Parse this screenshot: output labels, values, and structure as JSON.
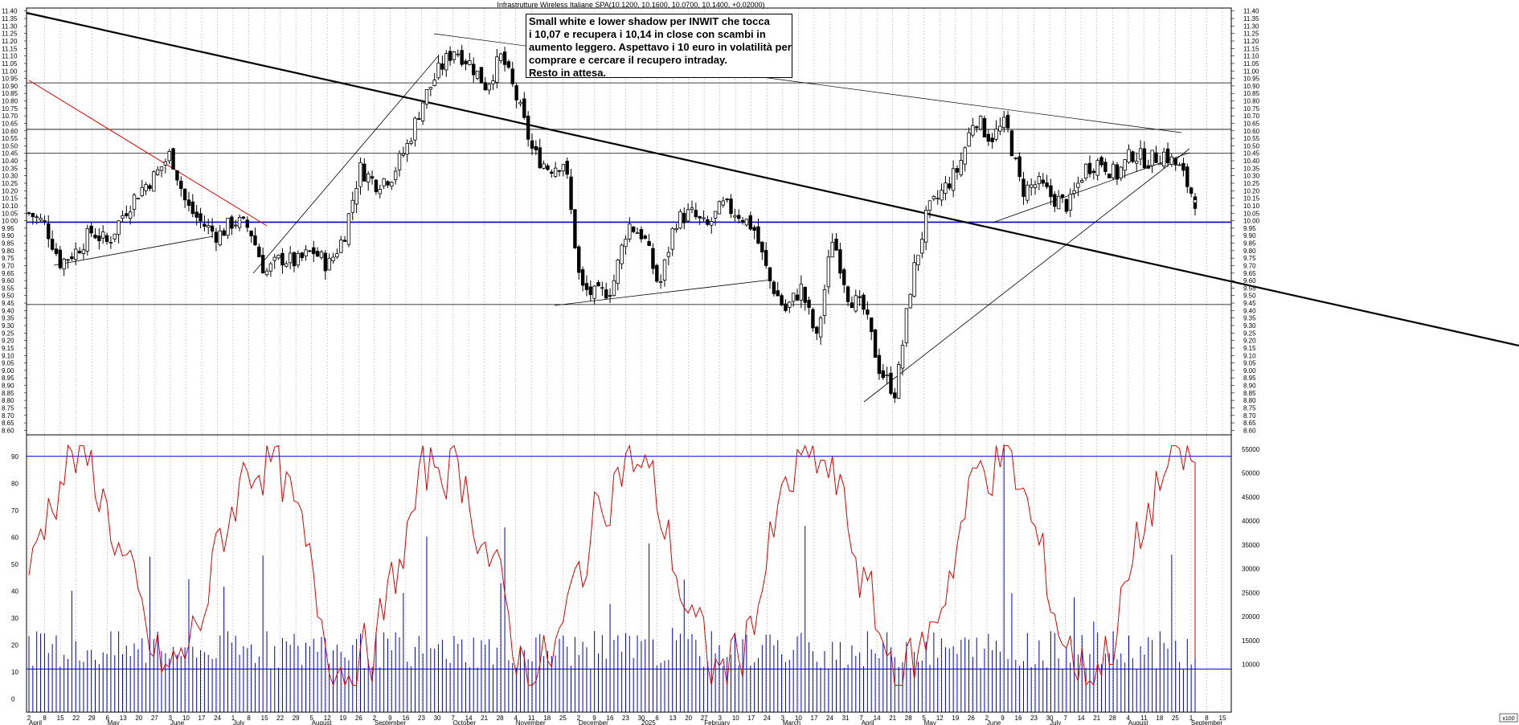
{
  "chart_data": [
    {
      "type": "candlestick",
      "title": "Infrastrutture Wireless Italiane SPA(10.1200, 10.1600, 10.0700, 10.1400, +0.02000)",
      "ylim": [
        8.57,
        11.42
      ],
      "y_ticks": [
        "11.40",
        "11.35",
        "11.30",
        "11.25",
        "11.20",
        "11.15",
        "11.10",
        "11.05",
        "11.00",
        "10.95",
        "10.90",
        "10.85",
        "10.80",
        "10.75",
        "10.70",
        "10.65",
        "10.60",
        "10.55",
        "10.50",
        "10.45",
        "10.40",
        "10.35",
        "10.30",
        "10.25",
        "10.20",
        "10.15",
        "10.10",
        "10.05",
        "10.00",
        "9.95",
        "9.90",
        "9.85",
        "9.80",
        "9.75",
        "9.70",
        "9.65",
        "9.60",
        "9.55",
        "9.50",
        "9.45",
        "9.40",
        "9.35",
        "9.30",
        "9.25",
        "9.20",
        "9.15",
        "9.10",
        "9.05",
        "9.00",
        "8.95",
        "8.90",
        "8.85",
        "8.80",
        "8.75",
        "8.70",
        "8.65",
        "8.60"
      ],
      "horizontal_levels": [
        10.92,
        10.61,
        10.45,
        9.99,
        9.44
      ],
      "blue_level": 9.99,
      "last_ohlc": {
        "open": 10.12,
        "high": 10.16,
        "low": 10.07,
        "close": 10.14,
        "change": 0.02
      },
      "annotation": [
        "Small white e lower shadow per INWIT che tocca",
        "i 10,07 e recupera i 10,14 in close con scambi in",
        "aumento leggero. Aspettavo i 10 euro in volatilità per",
        "comprare e cercare il recupero intraday.",
        "Resto in attesa."
      ],
      "close_series": [
        10.05,
        9.98,
        9.72,
        9.8,
        9.93,
        9.85,
        10.05,
        10.2,
        10.3,
        10.45,
        10.1,
        9.98,
        9.9,
        10.0,
        9.95,
        9.65,
        9.75,
        9.72,
        9.8,
        9.7,
        9.9,
        10.35,
        10.25,
        10.3,
        10.5,
        10.8,
        11.0,
        11.15,
        11.05,
        10.9,
        11.1,
        10.8,
        10.45,
        10.35,
        10.4,
        9.55,
        9.5,
        9.55,
        9.98,
        9.9,
        9.55,
        10.0,
        10.05,
        9.95,
        10.1,
        10.05,
        9.95,
        9.6,
        9.4,
        9.55,
        9.2,
        9.9,
        9.5,
        9.4,
        9.0,
        8.85,
        9.6,
        10.05,
        10.2,
        10.35,
        10.7,
        10.55,
        10.65,
        10.2,
        10.25,
        10.15,
        10.1,
        10.35,
        10.4,
        10.3,
        10.45,
        10.4,
        10.45,
        10.35,
        10.14
      ]
    },
    {
      "type": "bar",
      "series_name": "volume",
      "ylim": [
        0,
        58000
      ],
      "y_ticks": [
        "55000",
        "50000",
        "45000",
        "40000",
        "35000",
        "30000",
        "25000",
        "20000",
        "15000",
        "10000"
      ],
      "x100_label": "x100"
    },
    {
      "type": "line",
      "series_name": "oscillator",
      "ylim": [
        -5,
        98
      ],
      "y_ticks": [
        "90",
        "80",
        "70",
        "60",
        "50",
        "40",
        "30",
        "20",
        "10",
        "0"
      ],
      "reference_levels": [
        90,
        11
      ]
    }
  ],
  "x_axis": {
    "day_ticks": [
      "2",
      "8",
      "15",
      "22",
      "29",
      "6",
      "13",
      "20",
      "27",
      "3",
      "10",
      "17",
      "24",
      "1",
      "8",
      "15",
      "22",
      "29",
      "5",
      "12",
      "19",
      "26",
      "2",
      "9",
      "16",
      "23",
      "30",
      "7",
      "14",
      "21",
      "28",
      "4",
      "11",
      "18",
      "25",
      "2",
      "9",
      "16",
      "23",
      "30",
      "6",
      "13",
      "20",
      "27",
      "3",
      "10",
      "17",
      "24",
      "3",
      "10",
      "17",
      "24",
      "31",
      "7",
      "14",
      "21",
      "28",
      "5",
      "12",
      "19",
      "26",
      "2",
      "9",
      "16",
      "23",
      "30",
      "7",
      "14",
      "21",
      "28",
      "4",
      "11",
      "18",
      "25",
      "1",
      "8",
      "15"
    ],
    "months": [
      "April",
      "May",
      "June",
      "July",
      "August",
      "September",
      "October",
      "November",
      "December",
      "2025",
      "February",
      "March",
      "April",
      "May",
      "June",
      "July",
      "August",
      "September"
    ]
  }
}
